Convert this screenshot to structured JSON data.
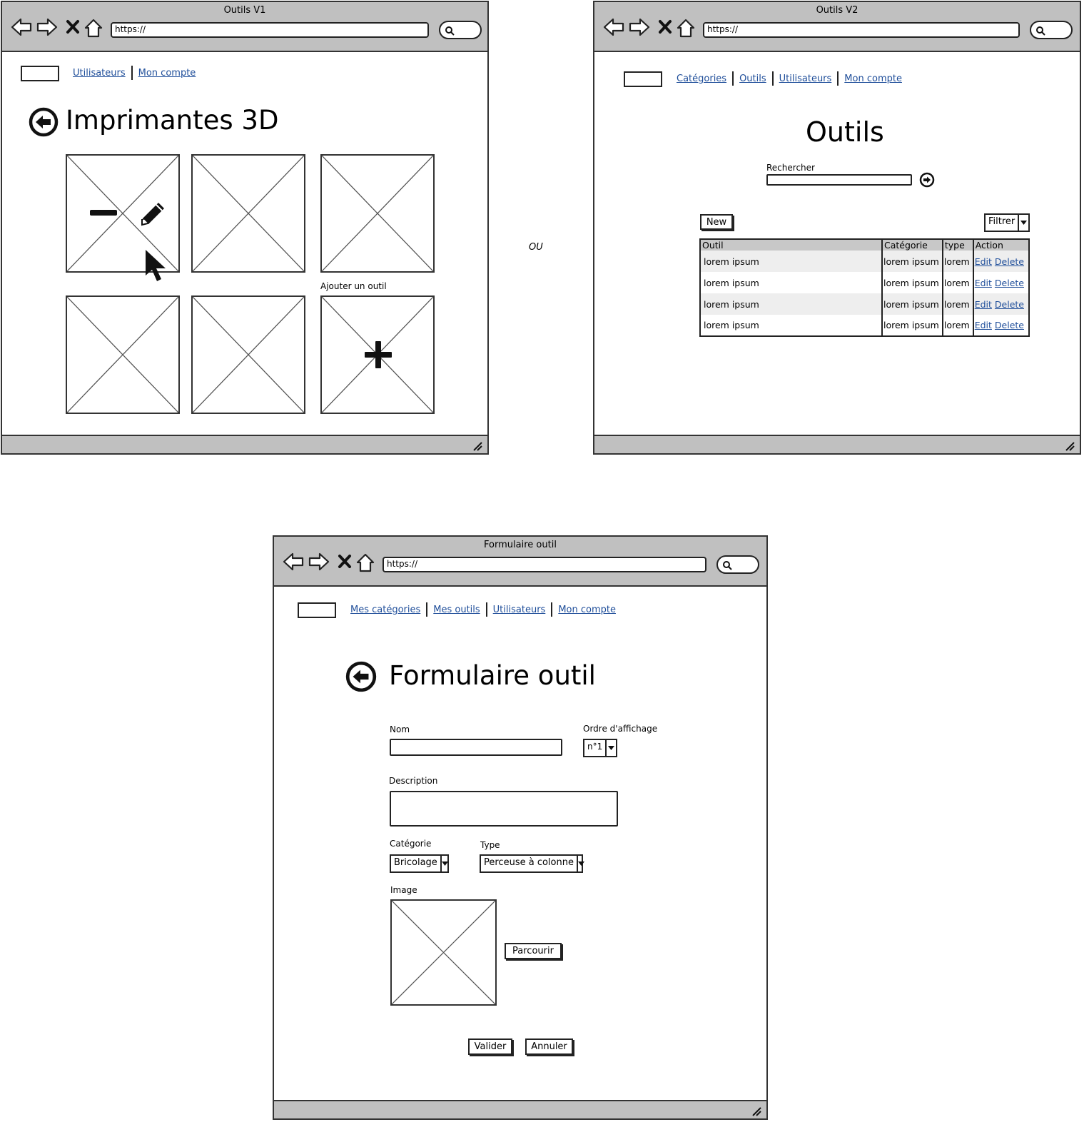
{
  "separator_text": "OU",
  "common": {
    "url": "https://"
  },
  "v1": {
    "window_title": "Outils V1",
    "nav": [
      "Utilisateurs",
      "Mon compte"
    ],
    "page_title": "Imprimantes 3D",
    "add_label": "Ajouter un outil"
  },
  "v2": {
    "window_title": "Outils V2",
    "nav": [
      "Catégories",
      "Outils",
      "Utilisateurs",
      "Mon compte"
    ],
    "page_title": "Outils",
    "search_label": "Rechercher",
    "new_button": "New",
    "filter_label": "Filtrer",
    "table": {
      "headers": [
        "Outil",
        "Catégorie",
        "type",
        "Action"
      ],
      "rows": [
        {
          "outil": "lorem ipsum",
          "categorie": "lorem ipsum",
          "type": "lorem",
          "edit": "Edit",
          "delete": "Delete"
        },
        {
          "outil": "lorem ipsum",
          "categorie": "lorem ipsum",
          "type": "lorem",
          "edit": "Edit",
          "delete": "Delete"
        },
        {
          "outil": "lorem ipsum",
          "categorie": "lorem ipsum",
          "type": "lorem",
          "edit": "Edit",
          "delete": "Delete"
        },
        {
          "outil": "lorem ipsum",
          "categorie": "lorem ipsum",
          "type": "lorem",
          "edit": "Edit",
          "delete": "Delete"
        }
      ]
    }
  },
  "form": {
    "window_title": "Formulaire outil",
    "nav": [
      "Mes catégories",
      "Mes outils",
      "Utilisateurs",
      "Mon compte"
    ],
    "page_title": "Formulaire outil",
    "nom_label": "Nom",
    "nom_value": "",
    "ordre_label": "Ordre d'affichage",
    "ordre_value": "n°1",
    "description_label": "Description",
    "description_value": "",
    "categorie_label": "Catégorie",
    "categorie_value": "Bricolage",
    "type_label": "Type",
    "type_value": "Perceuse à colonne",
    "image_label": "Image",
    "browse_button": "Parcourir",
    "submit_button": "Valider",
    "cancel_button": "Annuler"
  },
  "icons": {
    "back": "back-arrow-circle-icon",
    "minus": "minus-icon",
    "edit": "pencil-icon",
    "cursor": "mouse-pointer-icon",
    "plus": "plus-icon",
    "go": "arrow-right-circle-icon"
  }
}
